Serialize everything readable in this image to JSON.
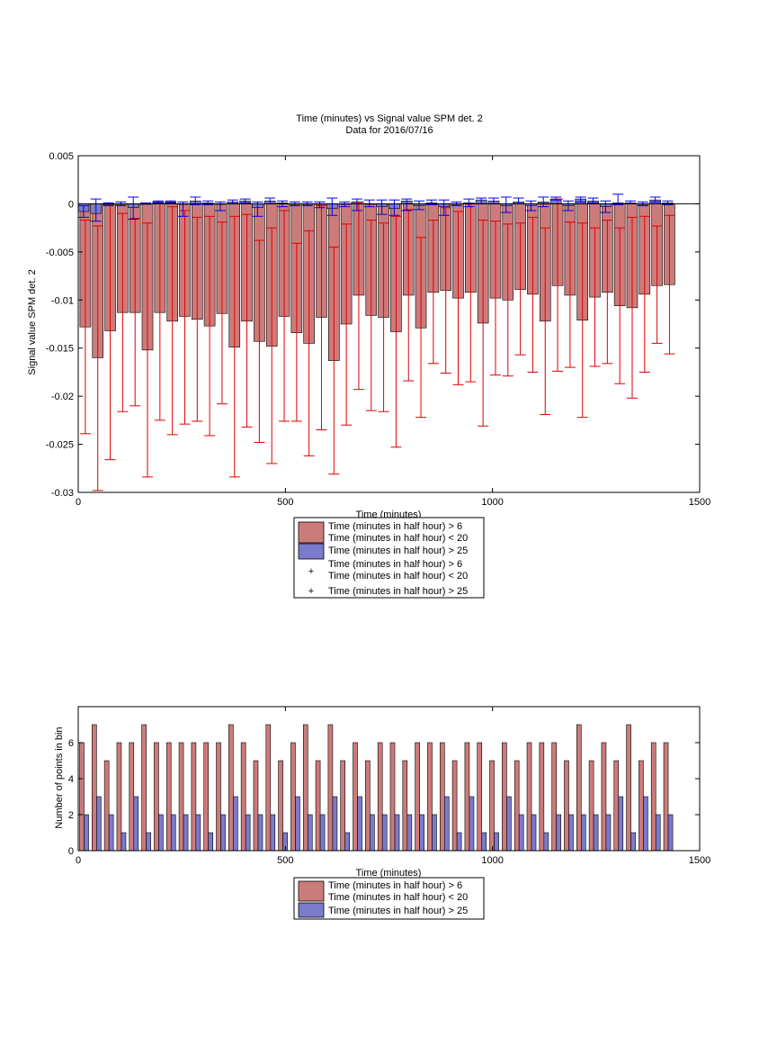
{
  "colors": {
    "red_fill": "#cc7b7b",
    "blue_fill": "#7b7bcc",
    "red_line": "#e00000",
    "blue_line": "#0000ee",
    "axis": "#000000"
  },
  "chart_data": [
    {
      "type": "bar",
      "title": "Time (minutes) vs Signal value SPM det. 2",
      "subtitle": "Data for 2016/07/16",
      "xlabel": "Time (minutes)",
      "ylabel": "Signal value SPM det. 2",
      "xlim": [
        0,
        1500
      ],
      "ylim": [
        -0.03,
        0.005
      ],
      "xticks": [
        0,
        500,
        1000,
        1500
      ],
      "yticks": [
        -0.03,
        -0.025,
        -0.02,
        -0.015,
        -0.01,
        -0.005,
        0,
        0.005
      ],
      "xtick_labels": [
        "0",
        "500",
        "1000",
        "1500"
      ],
      "ytick_labels": [
        "-0.03",
        "-0.025",
        "-0.02",
        "-0.015",
        "-0.01",
        "-0.005",
        "0",
        "0.005"
      ],
      "legend_position": "below",
      "legend": [
        "Time (minutes in half hour) > 6\nTime (minutes in half hour) < 20",
        "Time (minutes in half hour) > 25",
        "Time (minutes in half hour) > 6\nTime (minutes in half hour) < 20",
        "Time (minutes in half hour) > 25"
      ],
      "x": [
        15,
        45,
        75,
        105,
        135,
        165,
        195,
        225,
        255,
        285,
        315,
        345,
        375,
        405,
        435,
        465,
        495,
        525,
        555,
        585,
        615,
        645,
        675,
        705,
        735,
        765,
        795,
        825,
        855,
        885,
        915,
        945,
        975,
        1005,
        1035,
        1065,
        1095,
        1125,
        1155,
        1185,
        1215,
        1245,
        1275,
        1305,
        1335,
        1365,
        1395,
        1425
      ],
      "series": [
        {
          "name": "Time (minutes in half hour) > 6\nTime (minutes in half hour) < 20",
          "values": [
            -0.0128,
            -0.016,
            -0.0132,
            -0.0113,
            -0.0113,
            -0.0152,
            -0.0113,
            -0.0122,
            -0.0117,
            -0.012,
            -0.0127,
            -0.0114,
            -0.0149,
            -0.0122,
            -0.0143,
            -0.0148,
            -0.0117,
            -0.0134,
            -0.0145,
            -0.0118,
            -0.0163,
            -0.0125,
            -0.0095,
            -0.0116,
            -0.0118,
            -0.0133,
            -0.0095,
            -0.0129,
            -0.0092,
            -0.009,
            -0.0098,
            -0.0092,
            -0.0124,
            -0.0098,
            -0.01,
            -0.0089,
            -0.0094,
            -0.0122,
            -0.0085,
            -0.0095,
            -0.0121,
            -0.0097,
            -0.0092,
            -0.0106,
            -0.0108,
            -0.0094,
            -0.0085,
            -0.0084
          ],
          "err_low": [
            -0.0239,
            -0.0298,
            -0.0266,
            -0.0216,
            -0.021,
            -0.0284,
            -0.0225,
            -0.024,
            -0.0229,
            -0.0226,
            -0.0241,
            -0.0208,
            -0.0284,
            -0.0232,
            -0.0248,
            -0.027,
            -0.0226,
            -0.0226,
            -0.0262,
            -0.0235,
            -0.0281,
            -0.023,
            -0.0193,
            -0.0215,
            -0.0216,
            -0.0253,
            -0.0184,
            -0.0222,
            -0.0166,
            -0.0176,
            -0.0188,
            -0.0185,
            -0.0231,
            -0.0178,
            -0.0179,
            -0.0157,
            -0.0175,
            -0.0219,
            -0.0174,
            -0.017,
            -0.0222,
            -0.0169,
            -0.0166,
            -0.0187,
            -0.0202,
            -0.0175,
            -0.0145,
            -0.0156
          ],
          "err_high": [
            -0.0017,
            -0.0023,
            0.0,
            -0.001,
            -0.0015,
            -0.002,
            0.0,
            -0.0003,
            -0.0007,
            -0.0014,
            -0.0013,
            -0.0019,
            -0.0013,
            -0.0011,
            -0.0038,
            -0.0025,
            -0.0007,
            -0.0041,
            -0.0028,
            -0.0002,
            -0.0045,
            -0.0021,
            0.0002,
            -0.0017,
            -0.002,
            -0.0013,
            -0.0006,
            -0.0035,
            -0.0017,
            -0.0004,
            -0.0008,
            0.0,
            -0.0017,
            -0.0018,
            -0.0021,
            -0.002,
            -0.0014,
            -0.0025,
            0.0005,
            -0.0019,
            -0.002,
            -0.0025,
            -0.0017,
            -0.0025,
            -0.0014,
            -0.0013,
            -0.0023,
            -0.0012
          ]
        },
        {
          "name": "Time (minutes in half hour) > 25",
          "values": [
            -0.0008,
            -0.001,
            -0.0001,
            0.0,
            -0.0004,
            0.0,
            0.0002,
            0.0002,
            0.0,
            0.0003,
            0.0001,
            0.0,
            0.0002,
            0.0003,
            -0.0004,
            0.0003,
            0.0001,
            0.0,
            0.0,
            0.0,
            -0.0005,
            0.0,
            0.0002,
            0.0,
            -0.0003,
            -0.0005,
            0.0003,
            -0.0002,
            0.0001,
            -0.0003,
            0.0,
            0.0001,
            0.0004,
            0.0003,
            -0.0002,
            0.0002,
            -0.0002,
            0.0002,
            0.0005,
            -0.0002,
            0.0005,
            0.0003,
            -0.0003,
            0.0001,
            0.0001,
            0.0,
            0.0004,
            0.0001
          ],
          "err_low": [
            -0.0014,
            -0.0018,
            -0.0002,
            -0.0002,
            -0.0016,
            0.0,
            0.0001,
            0.0001,
            -0.0013,
            -0.0001,
            -0.0001,
            -0.0007,
            0.0,
            0.0001,
            -0.0013,
            0.0,
            -0.0003,
            -0.0002,
            -0.0002,
            -0.0004,
            -0.0012,
            -0.0003,
            -0.0007,
            -0.0003,
            -0.0011,
            -0.0012,
            -0.0007,
            -0.0006,
            -0.0001,
            -0.0012,
            -0.0002,
            -0.0003,
            0.0,
            0.0,
            -0.0009,
            0.0,
            -0.0007,
            -0.0003,
            0.0004,
            -0.0007,
            0.0002,
            0.0001,
            -0.0009,
            -0.0001,
            0.0,
            -0.0002,
            0.0002,
            -0.0001
          ],
          "err_high": [
            -0.0002,
            0.0005,
            0.0001,
            0.0002,
            0.0007,
            0.0001,
            0.0003,
            0.0003,
            0.0002,
            0.0007,
            0.0003,
            0.0002,
            0.0004,
            0.0005,
            0.0002,
            0.0006,
            0.0003,
            0.0002,
            0.0002,
            0.0002,
            0.0006,
            0.0002,
            0.0005,
            0.0004,
            0.0004,
            0.0004,
            0.0005,
            0.0003,
            0.0004,
            0.0004,
            0.0002,
            0.0005,
            0.0006,
            0.0006,
            0.0007,
            0.0006,
            0.0003,
            0.0007,
            0.0007,
            0.0003,
            0.0007,
            0.0006,
            0.0003,
            0.001,
            0.0003,
            0.0002,
            0.0007,
            0.0003
          ]
        }
      ]
    },
    {
      "type": "bar",
      "xlabel": "Time (minutes)",
      "ylabel": "Number of points in bin",
      "xlim": [
        0,
        1500
      ],
      "ylim": [
        0,
        8
      ],
      "xticks": [
        0,
        500,
        1000,
        1500
      ],
      "yticks": [
        0,
        2,
        4,
        6
      ],
      "xtick_labels": [
        "0",
        "500",
        "1000",
        "1500"
      ],
      "ytick_labels": [
        "0",
        "2",
        "4",
        "6"
      ],
      "legend_position": "below",
      "legend": [
        "Time (minutes in half hour) > 6\nTime (minutes in half hour) < 20",
        "Time (minutes in half hour) > 25"
      ],
      "x": [
        0,
        30,
        60,
        90,
        120,
        150,
        180,
        210,
        240,
        270,
        300,
        330,
        360,
        390,
        420,
        450,
        480,
        510,
        540,
        570,
        600,
        630,
        660,
        690,
        720,
        750,
        780,
        810,
        840,
        870,
        900,
        930,
        960,
        990,
        1020,
        1050,
        1080,
        1110,
        1140,
        1170,
        1200,
        1230,
        1260,
        1290,
        1320,
        1350,
        1380,
        1410
      ],
      "series": [
        {
          "name": "Time (minutes in half hour) > 6\nTime (minutes in half hour) < 20",
          "values": [
            6,
            7,
            5,
            6,
            6,
            7,
            6,
            6,
            6,
            6,
            6,
            6,
            7,
            6,
            5,
            7,
            5,
            6,
            7,
            5,
            7,
            5,
            6,
            5,
            6,
            6,
            5,
            6,
            6,
            6,
            5,
            6,
            6,
            5,
            6,
            5,
            6,
            6,
            6,
            5,
            7,
            5,
            6,
            5,
            7,
            5,
            6,
            6
          ]
        },
        {
          "name": "Time (minutes in half hour) > 25",
          "values": [
            2,
            3,
            2,
            1,
            3,
            1,
            2,
            2,
            2,
            2,
            1,
            2,
            3,
            2,
            2,
            2,
            1,
            3,
            2,
            2,
            3,
            1,
            3,
            2,
            2,
            2,
            2,
            2,
            2,
            3,
            1,
            3,
            1,
            1,
            3,
            2,
            2,
            1,
            2,
            2,
            2,
            2,
            2,
            3,
            1,
            3,
            2,
            2
          ]
        }
      ]
    }
  ]
}
